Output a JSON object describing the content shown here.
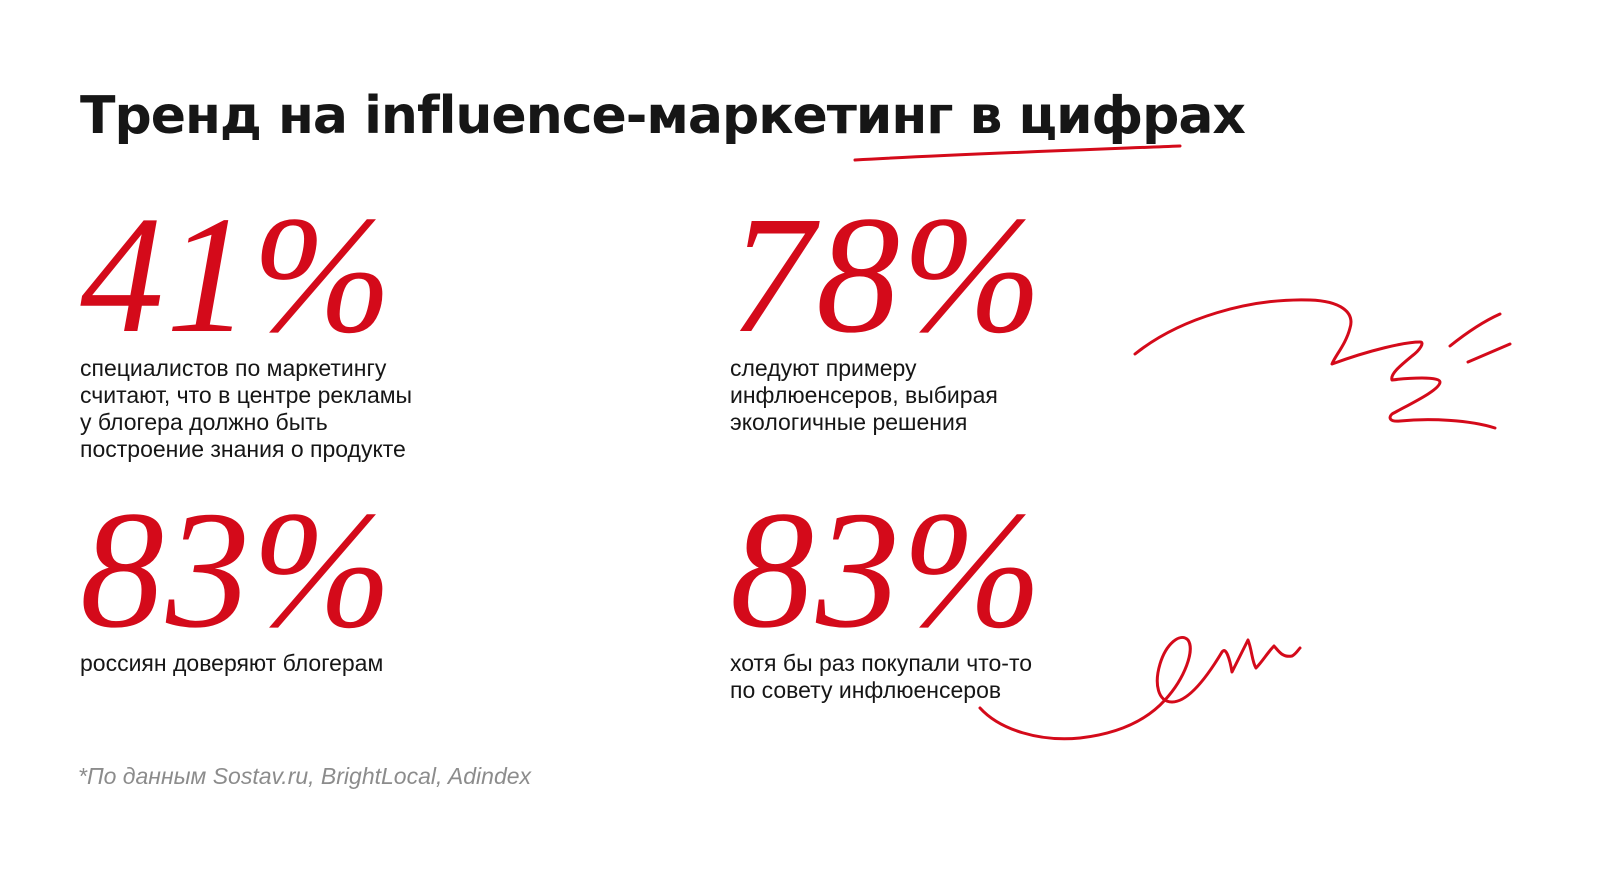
{
  "title": "Тренд на influence-маркетинг в цифрах",
  "stats": [
    {
      "value": "41%",
      "description": "специалистов по маркетингу\nсчитают, что в центре рекламы\nу блогера должно быть\nпостроение знания о продукте"
    },
    {
      "value": "78%",
      "description": "следуют примеру\nинфлюенсеров, выбирая\nэкологичные решения"
    },
    {
      "value": "83%",
      "description": "россиян доверяют блогерам"
    },
    {
      "value": "83%",
      "description": "хотя бы раз покупали что-то\nпо совету инфлюенсеров"
    }
  ],
  "footnote": "*По данным Sostav.ru, BrightLocal, Adindex",
  "colors": {
    "accent": "#d40a1a",
    "text": "#161616",
    "muted": "#8c8c8c",
    "background": "#ffffff"
  }
}
